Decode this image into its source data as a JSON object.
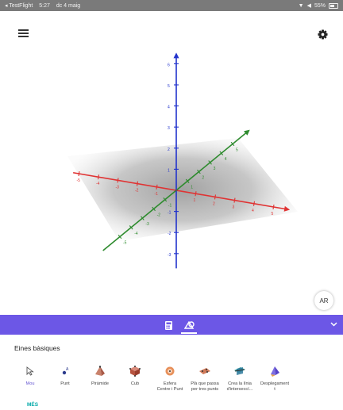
{
  "status_bar": {
    "left": [
      "◂ TestFlight",
      "5:27",
      "dc 4 maig"
    ],
    "right": [
      "▼",
      "◀",
      "55%"
    ]
  },
  "graphics": {
    "axes_colors": {
      "x": "#e03333",
      "y": "#2e8b2e",
      "z": "#2233cc"
    },
    "x_ticks": [
      "-5",
      "-4",
      "-3",
      "-2",
      "-1",
      "1",
      "2",
      "3",
      "4",
      "5"
    ],
    "y_ticks": [
      "-5",
      "-4",
      "-3",
      "-2",
      "-1",
      "1",
      "2",
      "3",
      "4",
      "5"
    ],
    "z_ticks": [
      "-3",
      "-2",
      "-1",
      "1",
      "2",
      "3",
      "4",
      "5",
      "6"
    ]
  },
  "ar_label": "AR",
  "tools_panel": {
    "category": "Eines bàsiques",
    "tools": [
      {
        "label": "Mou",
        "icon": "move-cursor-icon",
        "selected": true
      },
      {
        "label": "Punt",
        "icon": "point-icon"
      },
      {
        "label": "Piràmide",
        "icon": "pyramid-icon"
      },
      {
        "label": "Cub",
        "icon": "cube-icon"
      },
      {
        "label": "Esfera\nCentre i Punt",
        "icon": "sphere-icon"
      },
      {
        "label": "Plà que passa\nper tres punts",
        "icon": "plane-through-three-points-icon"
      },
      {
        "label": "Crea la línia\nd'interseccí...",
        "icon": "intersection-line-icon"
      },
      {
        "label": "Desplegament\nt",
        "icon": "net-icon"
      }
    ],
    "more": "MÉS"
  },
  "colors": {
    "toolbar": "#6c57e6",
    "accent_teal": "#00a8a8"
  }
}
